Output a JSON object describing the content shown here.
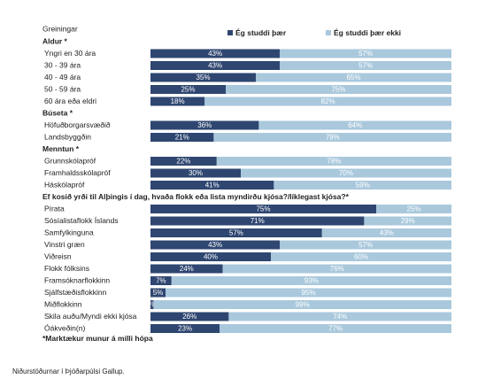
{
  "chart_data": {
    "type": "bar",
    "orientation": "horizontal",
    "stacked": true,
    "title": "Greiningar",
    "xlim": [
      0,
      100
    ],
    "series": [
      {
        "name": "Ég studdi þær",
        "color": "#2e4670"
      },
      {
        "name": "Ég studdi þær ekki",
        "color": "#a9c8dc"
      }
    ],
    "groups": [
      {
        "title": "Aldur *",
        "categories": [
          "Yngri en 30 ára",
          "30 - 39 ára",
          "40 - 49 ára",
          "50 - 59 ára",
          "60 ára eða eldri"
        ],
        "values": [
          [
            43,
            43,
            35,
            25,
            18
          ],
          [
            57,
            57,
            65,
            75,
            82
          ]
        ],
        "value_labels": [
          [
            "43%",
            "43%",
            "35%",
            "25%",
            "18%"
          ],
          [
            "57%",
            "57%",
            "65%",
            "75%",
            "82%"
          ]
        ]
      },
      {
        "title": "Búseta *",
        "categories": [
          "Höfuðborgarsvæðið",
          "Landsbyggðin"
        ],
        "values": [
          [
            36,
            21
          ],
          [
            64,
            79
          ]
        ],
        "value_labels": [
          [
            "36%",
            "21%"
          ],
          [
            "64%",
            "79%"
          ]
        ]
      },
      {
        "title": "Menntun *",
        "categories": [
          "Grunnskólapróf",
          "Framhaldsskólapróf",
          "Háskólapróf"
        ],
        "values": [
          [
            22,
            30,
            41
          ],
          [
            78,
            70,
            59
          ]
        ],
        "value_labels": [
          [
            "22%",
            "30%",
            "41%"
          ],
          [
            "78%",
            "70%",
            "59%"
          ]
        ]
      },
      {
        "title": "Ef kosið yrði til Alþingis í dag, hvaða flokk eða lista myndirðu kjósa?/líklegast kjósa?*",
        "categories": [
          "Pírata",
          "Sósíalistaflokk Íslands",
          "Samfylkinguna",
          "Vinstri græn",
          "Viðreisn",
          "Flokk fólksins",
          "Framsóknarflokkinn",
          "Sjálfstæðisflokkinn",
          "Miðflokkinn",
          "Skila auðu/Myndi ekki kjósa",
          "Óákveðin(n)"
        ],
        "values": [
          [
            75,
            71,
            57,
            43,
            40,
            24,
            7,
            5,
            1,
            26,
            23
          ],
          [
            25,
            29,
            43,
            57,
            60,
            76,
            93,
            95,
            99,
            74,
            77
          ]
        ],
        "value_labels": [
          [
            "75%",
            "71%",
            "57%",
            "43%",
            "40%",
            "24%",
            "7%",
            "5%",
            "1%",
            "26%",
            "23%"
          ],
          [
            "25%",
            "29%",
            "43%",
            "57%",
            "60%",
            "76%",
            "93%",
            "95%",
            "99%",
            "74%",
            "77%"
          ]
        ]
      }
    ],
    "footnote": "*Marktækur munur á milli hópa",
    "source": "Niðurstöðurnar í Þjóðarpúlsi Gallup."
  }
}
